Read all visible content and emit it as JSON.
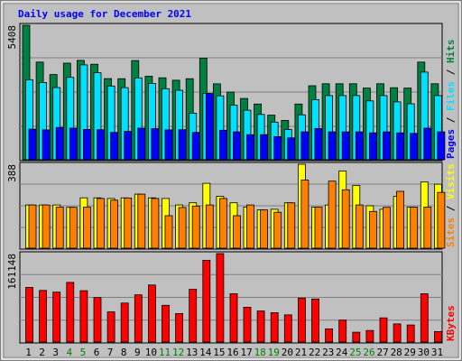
{
  "chart_data": {
    "type": "bar",
    "title": "Daily usage for December 2021",
    "categories": [
      "1",
      "2",
      "3",
      "4",
      "5",
      "6",
      "7",
      "8",
      "9",
      "10",
      "11",
      "12",
      "13",
      "14",
      "15",
      "16",
      "17",
      "18",
      "19",
      "20",
      "21",
      "22",
      "23",
      "24",
      "25",
      "26",
      "27",
      "28",
      "29",
      "30",
      "31"
    ],
    "weekend_days": [
      "4",
      "5",
      "11",
      "12",
      "18",
      "19",
      "25",
      "26"
    ],
    "panels": [
      {
        "id": "hits",
        "max_label": "5408",
        "ylim": [
          0,
          5408
        ],
        "legend": [
          "Pages",
          "Files",
          "Hits"
        ],
        "series": [
          {
            "name": "Hits",
            "color": "#008040",
            "values": [
              5408,
              3926,
              3426,
              3885,
              3995,
              3840,
              3263,
              3261,
              3989,
              3358,
              3296,
              3197,
              3261,
              4087,
              3053,
              2721,
              2465,
              2240,
              1792,
              1583,
              2240,
              2977,
              3056,
              3056,
              3056,
              2883,
              3056,
              2895,
              2883,
              3926,
              3056
            ]
          },
          {
            "name": "Files",
            "color": "#00e0ff",
            "values": [
              3219,
              3108,
              2903,
              3312,
              3815,
              3499,
              2964,
              2900,
              3293,
              3071,
              2857,
              2793,
              1872,
              2673,
              2570,
              2191,
              1992,
              1821,
              1515,
              1217,
              1806,
              2418,
              2579,
              2579,
              2579,
              2366,
              2579,
              2328,
              2250,
              3523,
              2579
            ]
          },
          {
            "name": "Pages",
            "color": "#0000ff",
            "values": [
              1232,
              1202,
              1300,
              1272,
              1220,
              1210,
              1100,
              1140,
              1270,
              1252,
              1201,
              1210,
              1100,
              2665,
              1188,
              1120,
              1010,
              1010,
              930,
              880,
              1120,
              1255,
              1120,
              1120,
              1120,
              1080,
              1120,
              1080,
              1060,
              1270,
              1120
            ]
          }
        ]
      },
      {
        "id": "visits",
        "max_label": "388",
        "ylim": [
          0,
          388
        ],
        "legend": [
          "Sites",
          "Visits"
        ],
        "series": [
          {
            "name": "Visits",
            "color": "#ffff00",
            "values": [
              200,
              200,
              200,
              189,
              233,
              233,
              230,
              233,
              250,
              233,
              230,
              200,
              210,
              300,
              240,
              210,
              190,
              177,
              180,
              210,
              388,
              190,
              200,
              357,
              290,
              196,
              180,
              240,
              190,
              306,
              296
            ]
          },
          {
            "name": "Sites",
            "color": "#ff8000",
            "values": [
              200,
              200,
              190,
              189,
              190,
              230,
              222,
              232,
              250,
              230,
              150,
              188,
              195,
              200,
              230,
              150,
              200,
              177,
              166,
              210,
              315,
              190,
              310,
              270,
              200,
              170,
              189,
              263,
              190,
              190,
              258
            ]
          }
        ]
      },
      {
        "id": "kbytes",
        "max_label": "161148",
        "ylim": [
          0,
          161148
        ],
        "legend": [
          "KBytes"
        ],
        "series": [
          {
            "name": "KBytes",
            "color": "#ff0000",
            "values": [
              99500,
              94000,
              91000,
              108700,
              93500,
              81000,
              55000,
              71000,
              86000,
              104000,
              67000,
              52000,
              96000,
              149000,
              161148,
              88000,
              63500,
              56500,
              53500,
              49500,
              80000,
              78500,
              24000,
              40000,
              18000,
              21000,
              44000,
              33000,
              31000,
              88000,
              19000
            ]
          }
        ]
      }
    ],
    "grid": true,
    "legend_position": "right-vertical"
  },
  "colors": {
    "page_background": "#ffffff",
    "frame_background": "#c0c0c0",
    "plot_background": "#c0c0c0",
    "title": "#0000ff",
    "weekday_label": "#000000",
    "weekend_label": "#007f00",
    "grid": "#808080",
    "legend_separator": "#000000"
  }
}
